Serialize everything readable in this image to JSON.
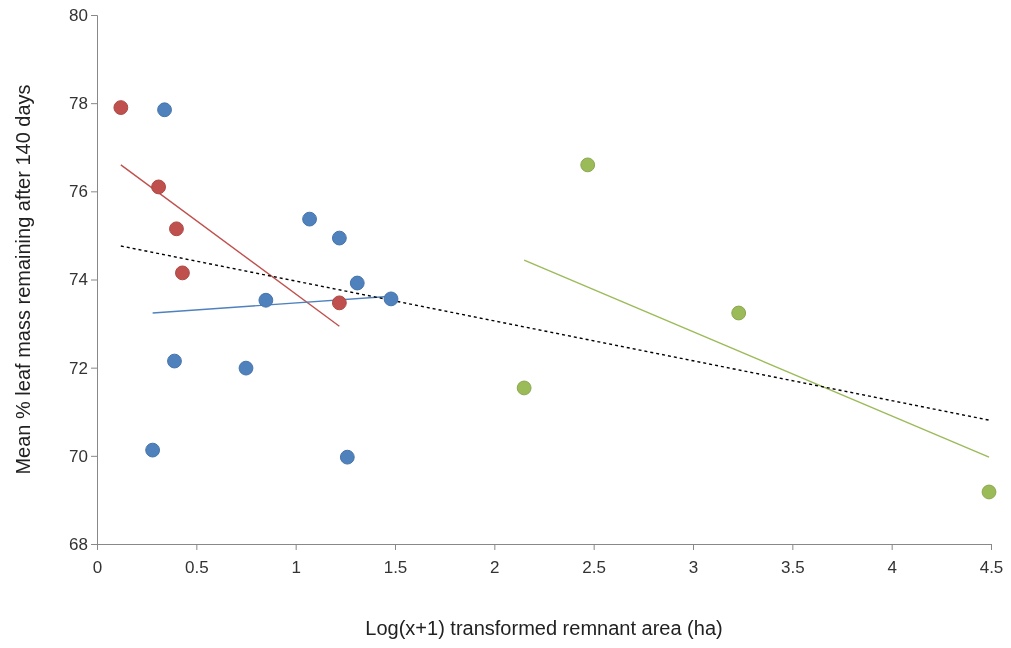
{
  "chart_data": {
    "type": "scatter",
    "xlabel": "Log(x+1) transformed remnant area (ha)",
    "ylabel": "Mean % leaf mass remaining after 140 days",
    "xlim": [
      0,
      4.5
    ],
    "xticks": [
      0,
      0.5,
      1,
      1.5,
      2,
      2.5,
      3,
      3.5,
      4,
      4.5
    ],
    "ylim": [
      68,
      80
    ],
    "yticks": [
      68,
      70,
      72,
      74,
      76,
      78,
      80
    ],
    "marker": "circle",
    "series": [
      {
        "color": "#c0504d",
        "x": [
          0.12,
          0.31,
          0.4,
          0.43,
          1.22
        ],
        "values": [
          77.9,
          76.1,
          75.15,
          74.15,
          73.47
        ]
      },
      {
        "color": "#4f81bd",
        "x": [
          0.34,
          0.39,
          0.28,
          0.75,
          0.85,
          1.07,
          1.22,
          1.31,
          1.48,
          1.26
        ],
        "values": [
          77.85,
          72.15,
          70.13,
          71.99,
          73.53,
          75.37,
          74.94,
          73.92,
          73.56,
          69.97
        ]
      },
      {
        "color": "#9bbb59",
        "x": [
          2.15,
          2.47,
          3.23,
          4.49
        ],
        "values": [
          71.54,
          76.6,
          73.24,
          69.18
        ]
      },
      {
        "type": "line",
        "color": "#c0504d",
        "marker": "none",
        "line_style": "solid",
        "x": [
          0.12,
          1.22
        ],
        "values": [
          76.6,
          72.94
        ]
      },
      {
        "type": "line",
        "color": "#4f81bd",
        "marker": "none",
        "line_style": "solid",
        "x": [
          0.28,
          1.48
        ],
        "values": [
          73.24,
          73.62
        ]
      },
      {
        "type": "line",
        "color": "#9bbb59",
        "marker": "none",
        "line_style": "solid",
        "x": [
          2.15,
          4.49
        ],
        "values": [
          74.44,
          69.97
        ]
      },
      {
        "type": "line",
        "color": "#000000",
        "marker": "none",
        "line_style": "dotted",
        "x": [
          0.12,
          4.49
        ],
        "values": [
          74.76,
          70.81
        ]
      }
    ]
  }
}
